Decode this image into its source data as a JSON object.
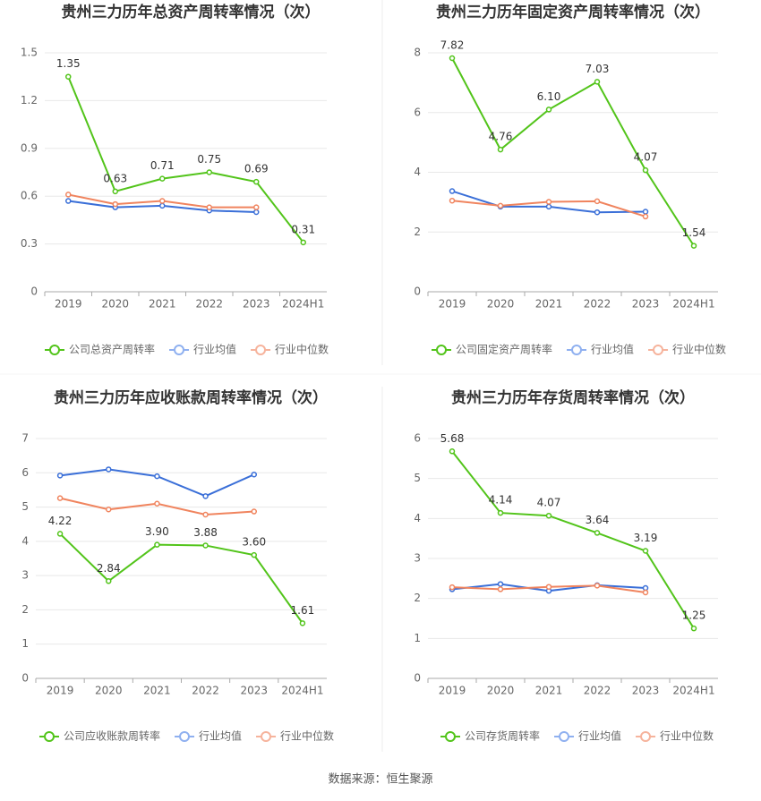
{
  "chart_data": [
    {
      "type": "line",
      "title": "贵州三力历年总资产周转率情况（次）",
      "categories": [
        "2019",
        "2020",
        "2021",
        "2022",
        "2023",
        "2024H1"
      ],
      "ylim": [
        0,
        1.5
      ],
      "yticks": [
        0,
        0.3,
        0.6,
        0.9,
        1.2,
        1.5
      ],
      "grid": true,
      "series": [
        {
          "name": "公司总资产周转率",
          "color": "#52c41a",
          "values": [
            1.35,
            0.63,
            0.71,
            0.75,
            0.69,
            0.31
          ],
          "value_labels": [
            "1.35",
            "0.63",
            "0.71",
            "0.75",
            "0.69",
            "0.31"
          ]
        },
        {
          "name": "行业均值",
          "color": "#3a6fd8",
          "values": [
            0.57,
            0.53,
            0.54,
            0.51,
            0.5,
            null
          ]
        },
        {
          "name": "行业中位数",
          "color": "#f0845e",
          "values": [
            0.61,
            0.55,
            0.57,
            0.53,
            0.53,
            null
          ]
        }
      ]
    },
    {
      "type": "line",
      "title": "贵州三力历年固定资产周转率情况（次）",
      "categories": [
        "2019",
        "2020",
        "2021",
        "2022",
        "2023",
        "2024H1"
      ],
      "ylim": [
        0,
        8
      ],
      "yticks": [
        0,
        2,
        4,
        6,
        8
      ],
      "grid": true,
      "series": [
        {
          "name": "公司固定资产周转率",
          "color": "#52c41a",
          "values": [
            7.82,
            4.76,
            6.1,
            7.03,
            4.07,
            1.54
          ],
          "value_labels": [
            "7.82",
            "4.76",
            "6.10",
            "7.03",
            "4.07",
            "1.54"
          ]
        },
        {
          "name": "行业均值",
          "color": "#3a6fd8",
          "values": [
            3.37,
            2.85,
            2.85,
            2.66,
            2.68,
            null
          ]
        },
        {
          "name": "行业中位数",
          "color": "#f0845e",
          "values": [
            3.05,
            2.88,
            3.01,
            3.03,
            2.52,
            null
          ]
        }
      ]
    },
    {
      "type": "line",
      "title": "贵州三力历年应收账款周转率情况（次）",
      "categories": [
        "2019",
        "2020",
        "2021",
        "2022",
        "2023",
        "2024H1"
      ],
      "ylim": [
        0,
        7
      ],
      "yticks": [
        0,
        1,
        2,
        3,
        4,
        5,
        6,
        7
      ],
      "grid": true,
      "series": [
        {
          "name": "公司应收账款周转率",
          "color": "#52c41a",
          "values": [
            4.22,
            2.84,
            3.9,
            3.88,
            3.6,
            1.61
          ],
          "value_labels": [
            "4.22",
            "2.84",
            "3.90",
            "3.88",
            "3.60",
            "1.61"
          ]
        },
        {
          "name": "行业均值",
          "color": "#3a6fd8",
          "values": [
            5.92,
            6.1,
            5.9,
            5.32,
            5.95,
            null
          ]
        },
        {
          "name": "行业中位数",
          "color": "#f0845e",
          "values": [
            5.26,
            4.93,
            5.1,
            4.78,
            4.87,
            null
          ]
        }
      ]
    },
    {
      "type": "line",
      "title": "贵州三力历年存货周转率情况（次）",
      "categories": [
        "2019",
        "2020",
        "2021",
        "2022",
        "2023",
        "2024H1"
      ],
      "ylim": [
        0,
        6
      ],
      "yticks": [
        0,
        1,
        2,
        3,
        4,
        5,
        6
      ],
      "grid": true,
      "series": [
        {
          "name": "公司存货周转率",
          "color": "#52c41a",
          "values": [
            5.68,
            4.14,
            4.07,
            3.64,
            3.19,
            1.25
          ],
          "value_labels": [
            "5.68",
            "4.14",
            "4.07",
            "3.64",
            "3.19",
            "1.25"
          ]
        },
        {
          "name": "行业均值",
          "color": "#3a6fd8",
          "values": [
            2.23,
            2.36,
            2.19,
            2.33,
            2.26,
            null
          ]
        },
        {
          "name": "行业中位数",
          "color": "#f0845e",
          "values": [
            2.28,
            2.23,
            2.29,
            2.32,
            2.15,
            null
          ]
        }
      ]
    }
  ],
  "source": "数据来源：恒生聚源"
}
